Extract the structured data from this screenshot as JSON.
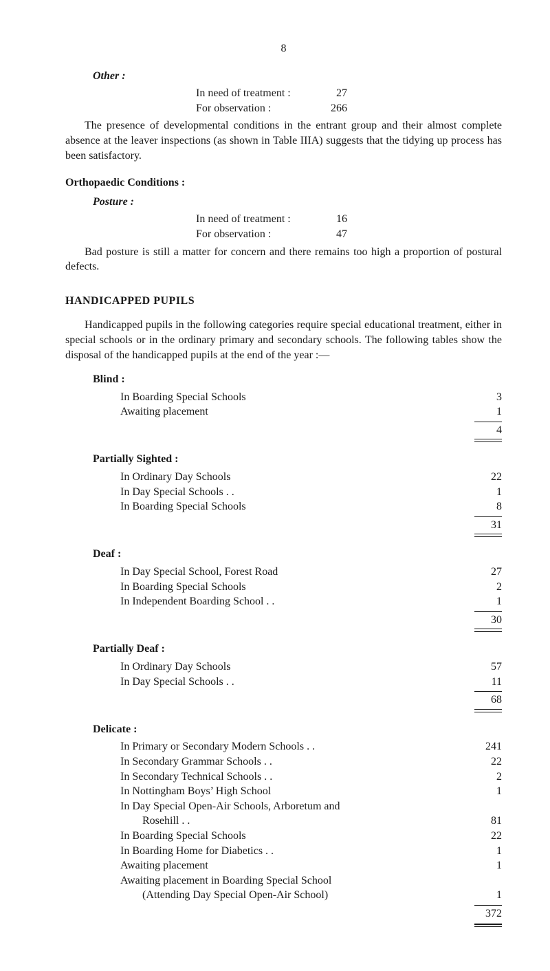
{
  "page_number": "8",
  "other": {
    "heading": "Other :",
    "stats": {
      "treatment": {
        "label": "In need of treatment :",
        "value": "27"
      },
      "observation": {
        "label": "For observation :",
        "value": "266"
      }
    },
    "paragraph": "The presence of developmental conditions in the entrant group and their almost complete absence at the leaver inspections (as shown in Table IIIA) suggests that the tidying up process has been satisfactory."
  },
  "orthopaedic": {
    "heading": "Orthopaedic Conditions :",
    "sub": "Posture :",
    "stats": {
      "treatment": {
        "label": "In need of treatment :",
        "value": "16"
      },
      "observation": {
        "label": "For observation :",
        "value": "47"
      }
    },
    "paragraph": "Bad posture is still a matter for concern and there remains too high a proportion of postural defects."
  },
  "handicapped": {
    "heading": "HANDICAPPED   PUPILS",
    "intro": "Handicapped pupils in the following categories require special educa­tional treatment, either in special schools or in the ordinary primary and secondary schools. The following tables show the disposal of the handi­capped pupils at the end of the year :—",
    "blind": {
      "heading": "Blind :",
      "rows": [
        {
          "label": "In Boarding Special Schools",
          "value": "3"
        },
        {
          "label": "Awaiting placement",
          "value": "1"
        }
      ],
      "total": "4"
    },
    "partially_sighted": {
      "heading": "Partially Sighted :",
      "rows": [
        {
          "label": "In Ordinary Day Schools",
          "value": "22"
        },
        {
          "label": "In Day Special Schools . .",
          "value": "1"
        },
        {
          "label": "In Boarding Special Schools",
          "value": "8"
        }
      ],
      "total": "31"
    },
    "deaf": {
      "heading": "Deaf :",
      "rows": [
        {
          "label": "In Day Special School, Forest Road",
          "value": "27"
        },
        {
          "label": "In Boarding Special Schools",
          "value": "2"
        },
        {
          "label": "In Independent Boarding School . .",
          "value": "1"
        }
      ],
      "total": "30"
    },
    "partially_deaf": {
      "heading": "Partially Deaf :",
      "rows": [
        {
          "label": "In Ordinary Day Schools",
          "value": "57"
        },
        {
          "label": "In Day Special Schools . .",
          "value": "11"
        }
      ],
      "total": "68"
    },
    "delicate": {
      "heading": "Delicate :",
      "rows": [
        {
          "label": "In Primary or Secondary Modern Schools . .",
          "value": "241"
        },
        {
          "label": "In Secondary Grammar Schools . .",
          "value": "22"
        },
        {
          "label": "In Secondary Technical Schools . .",
          "value": "2"
        },
        {
          "label": "In Nottingham Boys’ High School",
          "value": "1"
        },
        {
          "label": "In Day Special Open-Air Schools, Arboretum and",
          "value": ""
        },
        {
          "label": "        Rosehill . .",
          "value": "81"
        },
        {
          "label": "In Boarding Special Schools",
          "value": "22"
        },
        {
          "label": "In Boarding Home for Diabetics . .",
          "value": "1"
        },
        {
          "label": "Awaiting placement",
          "value": "1"
        },
        {
          "label": "Awaiting placement in Boarding Special School",
          "value": ""
        },
        {
          "label": "        (Attending Day Special Open-Air School)",
          "value": "1"
        }
      ],
      "total": "372"
    }
  }
}
